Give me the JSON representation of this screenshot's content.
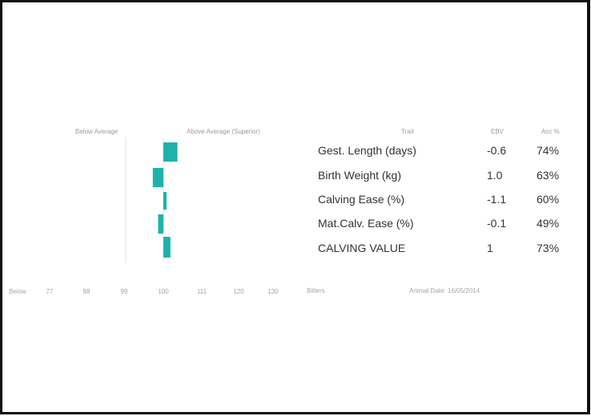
{
  "chart_data": {
    "type": "bar",
    "orientation": "horizontal",
    "legend": {
      "left": "Below Average",
      "right": "Above Average (Superior)"
    },
    "x_ticks": [
      "Below",
      "77",
      "88",
      "99",
      "100",
      "111",
      "120",
      "130"
    ],
    "xlim": [
      70,
      135
    ],
    "baseline": 100,
    "rows": [
      {
        "label": "Gest. Length (days)",
        "ebv": "-0.6",
        "acc": "74%",
        "index": 108
      },
      {
        "label": "Birth Weight (kg)",
        "ebv": "1.0",
        "acc": "63%",
        "index": 94
      },
      {
        "label": "Calving Ease (%)",
        "ebv": "-1.1",
        "acc": "60%",
        "index": 101
      },
      {
        "label": "Mat.Calv. Ease (%)",
        "ebv": "-0.1",
        "acc": "49%",
        "index": 97
      },
      {
        "label": "CALVING VALUE",
        "ebv": "1",
        "acc": "73%",
        "index": 104
      }
    ],
    "columns": {
      "trait": "Trait",
      "ebv": "EBV",
      "acc": "Acc %"
    },
    "bar_color": "#20b2aa",
    "footer_left": "Bitters",
    "footer_right": "Animal Date: 16/05/2014"
  }
}
